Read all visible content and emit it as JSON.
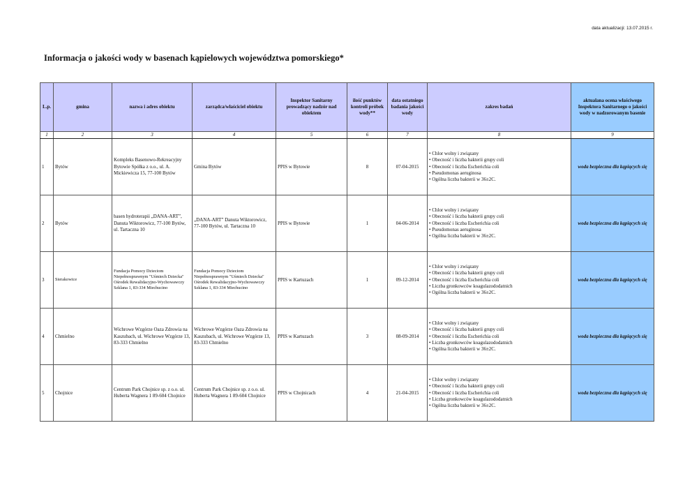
{
  "update_date": "data aktualizacji: 13.07.2015 r.",
  "title": "Informacja o jakości wody w basenach kąpielowych województwa pomorskiego*",
  "headers": [
    "L.p.",
    "gmina",
    "nazwa i adres obiektu",
    "zarządca/właściciel obiektu",
    "Inspektor Sanitarny prowadzący nadzór nad obiektem",
    "ilość punktów kontroli próbek wody**",
    "data ostatniego badania jakości wody",
    "zakres badań",
    "aktualana ocena właściwego Inspektora Sanitarnego o jakości wody w nadzorowanym basenie"
  ],
  "column_numbers": [
    "1",
    "2",
    "3",
    "4",
    "5",
    "6",
    "7",
    "8",
    "9"
  ],
  "rows": [
    {
      "lp": "1",
      "gmina": "Bytów",
      "nazwa": "Kompleks Basenowo-Rekreacyjny Bytowie Spółka z o.o., ul. A. Mickiewicza 15, 77-100 Bytów",
      "zarzadca": "Gmina Bytów",
      "inspektor": "PPIS w Bytowie",
      "punkty": "8",
      "data": "07-04-2015",
      "zakres": [
        "Chlor wolny i związany",
        "Obecność i liczba bakterii grupy coli",
        "Obecność i liczba Escherichia coli",
        "Pseudomonas aeruginosa",
        "Ogólna liczba bakterii w 36±2C."
      ],
      "ocena": "woda bezpieczna dla kąpiących się"
    },
    {
      "lp": "2",
      "gmina": "Bytów",
      "nazwa": "basen hydroterapii „DANA-ART”, Danuta Wiktorowicz, 77-100 Bytów, ul. Tartaczna 10",
      "zarzadca": "„DANA-ART” Danuta Wiktorowicz, 77-100 Bytów, ul. Tartaczna 10",
      "inspektor": "PPIS w Bytowie",
      "punkty": "1",
      "data": "04-06-2014",
      "zakres": [
        "Chlor wolny i związany",
        "Obecność i liczba bakterii grupy coli",
        "Obecność i liczba Escherichia coli",
        "Pseudomonas aeruginosa",
        "Ogólna liczba bakterii w 36±2C."
      ],
      "ocena": "woda bezpieczna dla kąpiących się"
    },
    {
      "lp": "3",
      "gmina": "Sierakowice",
      "nazwa": "Fundacja Pomocy Dzieciom Niepełnosprawnym \"Uśmiech Dziecka\"  Ośrodek Rewalidacyjno-Wychowawczy Szklana 1, 83-334 Miechucino",
      "zarzadca": "Fundacja Pomocy Dzieciom Niepełnosprawnym \"Uśmiech Dziecka\"  Ośrodek Rewalidacyjno-Wychowawczy Szklana 1, 83-334 Miechucino",
      "inspektor": "PPIS w Kartuzach",
      "punkty": "1",
      "data": "09-12-2014",
      "zakres": [
        "Chlor wolny i związany",
        "Obecność i liczba bakterii grupy coli",
        "Obecność i liczba Escherichia coli",
        "Liczba gronkowców koagulazododatnich",
        "Ogólna liczba bakterii w 36±2C."
      ],
      "ocena": "woda bezpieczna dla kąpiących się"
    },
    {
      "lp": "4",
      "gmina": "Chmielno",
      "nazwa": "Wichrowe Wzgórze Oaza Zdrowia na Kaszubach, ul. Wichrowe Wzgórze 13, 83-333 Chmielno",
      "zarzadca": "Wichrowe Wzgórze Oaza Zdrowia na Kaszubach, ul. Wichrowe Wzgórze 13, 83-333 Chmielno",
      "inspektor": "PPIS w Kartuzach",
      "punkty": "3",
      "data": "08-09-2014",
      "zakres": [
        "Chlor wolny i związany",
        "Obecność i liczba bakterii grupy coli",
        "Obecność i liczba Escherichia coli",
        "Liczba gronkowców koagulazododatnich",
        "Ogólna liczba bakterii w 36±2C."
      ],
      "ocena": "woda bezpieczna dla kąpiących się"
    },
    {
      "lp": "5",
      "gmina": "Chojnice",
      "nazwa": "Centrum Park Chojnice sp. z o.o. ul. Huberta Wagnera 1 89-604 Chojnice",
      "zarzadca": "Centrum Park Chojnice sp. z o.o. ul. Huberta Wagnera 1 89-604 Chojnice",
      "inspektor": "PPIS w Chojnicach",
      "punkty": "4",
      "data": "21-04-2015",
      "zakres": [
        "Chlor wolny i związany",
        "Obecność i liczba bakterii grupy coli",
        "Obecność i liczba Escherichia coli",
        "Liczba gronkowców koagulazododatnich",
        "Ogólna liczba bakterii w 36±2C."
      ],
      "ocena": "woda bezpieczna dla kąpiących się"
    }
  ],
  "colors": {
    "header_bg": "#ccccff",
    "assessment_bg": "#99ccff"
  }
}
